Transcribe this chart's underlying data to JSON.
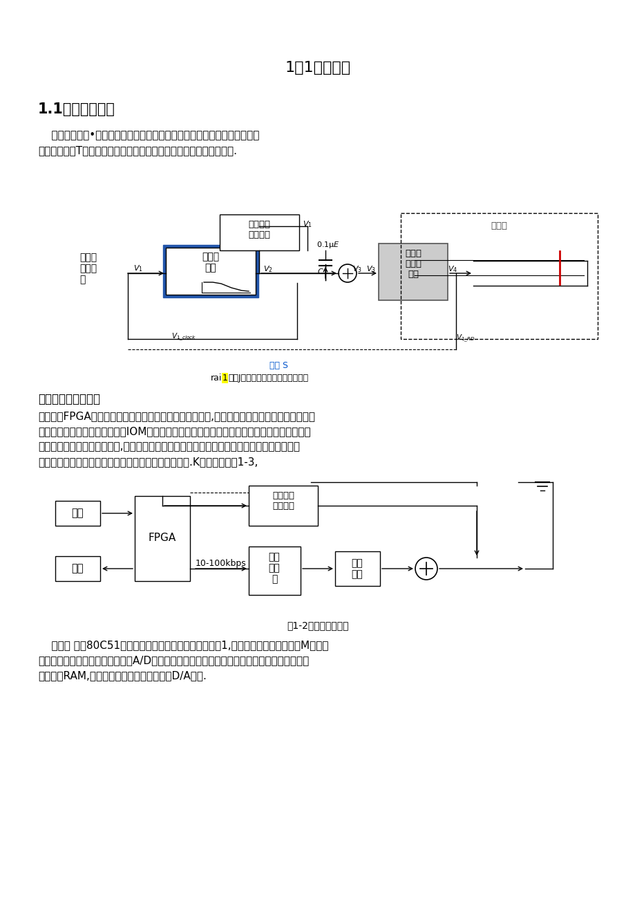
{
  "page_title": "1．1系统设计",
  "section_title": "1.1总体设计方案",
  "para1_line1": "    题目要求设计•个简易数字信号传输性能分析仪，实现数字信号传输性能测",
  "para1_line2": "试；同时设计T个低通戏波器和一个伪随机信号发生器来模拟传输信道.",
  "fig1_caption_top": "开关 S",
  "fig1_caption_bottom_pre": "rai",
  "fig1_caption_bottom_mid": "1",
  "fig1_caption_bottom_post": "尚乁J数字信号内检性俺分析仪框图",
  "subsection_title": "总体方案选择与论证",
  "para2_lines": [
    "方案：用FPGA可编程逻辑器件作为限制及为据处理的核心,在发送端产生数字信号，发送过程中",
    "数字信号通过低通注波朔，并用IOM伪随机码进行冷定处理后，模拟加性噪声，伪题机码会加在",
    "通过低通注波器的数字信号上,用三种不同的低通注波器模拟三种不同的信道，在接收端进行肯",
    "定的数字信号处理，最终输出用示波器来推断传输性能.K系统框图如图1-3,"
  ],
  "fig2_caption": "图1-2方案一系统框图",
  "para3_lines": [
    "    方案二 采纳80C51单片机为限制核心，其系统框图如图1,对输入信号进行放大或衰M后，用",
    "外接触发电路产生触发信号，通过A/D转换将模拟信号转换成数字信号，再通过单片机将数据锁",
    "存至外部RAM,然后由单片机限制将数据送至D/A输出."
  ],
  "bg_color": "#ffffff",
  "text_color": "#000000"
}
